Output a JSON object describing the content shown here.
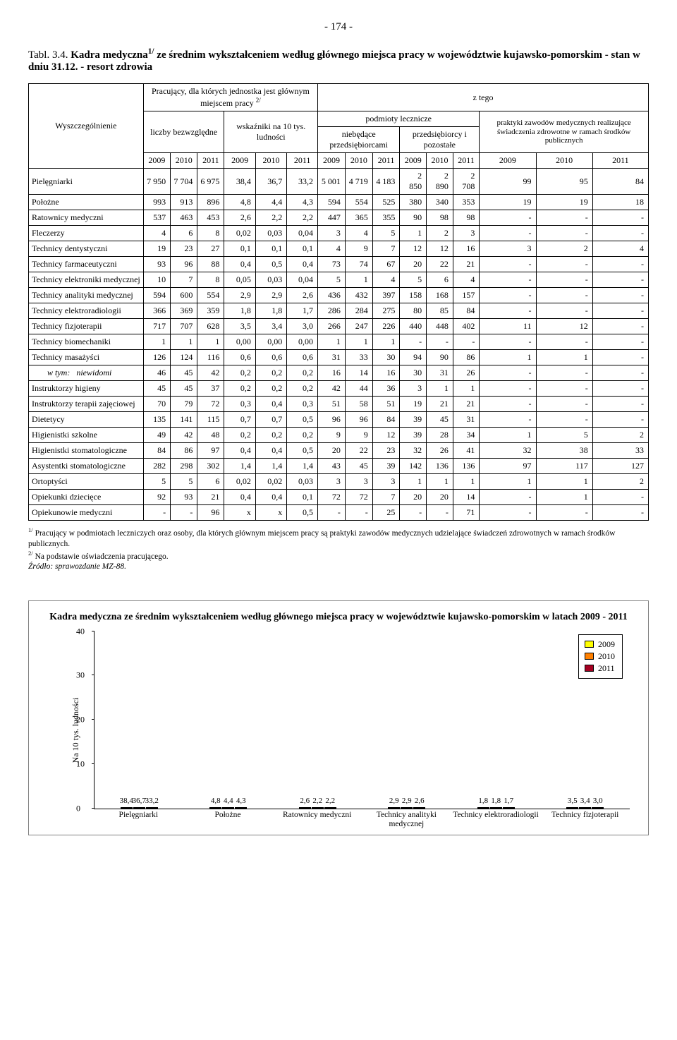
{
  "page_number": "- 174 -",
  "title_prefix": "Tabl. 3.4.",
  "title_main": "Kadra medyczna",
  "title_sup": "1/",
  "title_rest": " ze średnim wykształceniem według głównego miejsca pracy w województwie kujawsko-pomorskim - stan w dniu 31.12. - resort zdrowia",
  "header": {
    "col1": "Wyszczególnienie",
    "group_top": "Pracujący, dla których jednostka jest głównym miejscem pracy",
    "group_top_sup": "2/",
    "z_tego": "z tego",
    "liczby": "liczby bezwzględne",
    "wskazniki": "wskaźniki na 10 tys. ludności",
    "podmioty": "podmioty lecznicze",
    "praktyki": "praktyki zawodów medycznych realizujące świadczenia zdrowotne w ramach środków publicznych",
    "niebedace": "niebędące przedsiębiorcami",
    "przedsiebiorcy": "przedsiębiorcy i pozostałe",
    "years": [
      "2009",
      "2010",
      "2011",
      "2009",
      "2010",
      "2011",
      "2009",
      "2010",
      "2011",
      "2009",
      "2010",
      "2011",
      "2009",
      "2010",
      "2011"
    ]
  },
  "rows": [
    {
      "label": "Pielęgniarki",
      "cells": [
        "7 950",
        "7 704",
        "6 975",
        "38,4",
        "36,7",
        "33,2",
        "5 001",
        "4 719",
        "4 183",
        "2 850",
        "2 890",
        "2 708",
        "99",
        "95",
        "84"
      ]
    },
    {
      "label": "Położne",
      "cells": [
        "993",
        "913",
        "896",
        "4,8",
        "4,4",
        "4,3",
        "594",
        "554",
        "525",
        "380",
        "340",
        "353",
        "19",
        "19",
        "18"
      ]
    },
    {
      "label": "Ratownicy medyczni",
      "cells": [
        "537",
        "463",
        "453",
        "2,6",
        "2,2",
        "2,2",
        "447",
        "365",
        "355",
        "90",
        "98",
        "98",
        "-",
        "-",
        "-"
      ]
    },
    {
      "label": "Fleczerzy",
      "cells": [
        "4",
        "6",
        "8",
        "0,02",
        "0,03",
        "0,04",
        "3",
        "4",
        "5",
        "1",
        "2",
        "3",
        "-",
        "-",
        "-"
      ]
    },
    {
      "label": "Technicy dentystyczni",
      "cells": [
        "19",
        "23",
        "27",
        "0,1",
        "0,1",
        "0,1",
        "4",
        "9",
        "7",
        "12",
        "12",
        "16",
        "3",
        "2",
        "4"
      ]
    },
    {
      "label": "Technicy farmaceutyczni",
      "cells": [
        "93",
        "96",
        "88",
        "0,4",
        "0,5",
        "0,4",
        "73",
        "74",
        "67",
        "20",
        "22",
        "21",
        "-",
        "-",
        "-"
      ]
    },
    {
      "label": "Technicy elektroniki medycznej",
      "cells": [
        "10",
        "7",
        "8",
        "0,05",
        "0,03",
        "0,04",
        "5",
        "1",
        "4",
        "5",
        "6",
        "4",
        "-",
        "-",
        "-"
      ]
    },
    {
      "label": "Technicy analityki medycznej",
      "cells": [
        "594",
        "600",
        "554",
        "2,9",
        "2,9",
        "2,6",
        "436",
        "432",
        "397",
        "158",
        "168",
        "157",
        "-",
        "-",
        "-"
      ]
    },
    {
      "label": "Technicy elektroradiologii",
      "cells": [
        "366",
        "369",
        "359",
        "1,8",
        "1,8",
        "1,7",
        "286",
        "284",
        "275",
        "80",
        "85",
        "84",
        "-",
        "-",
        "-"
      ]
    },
    {
      "label": "Technicy fizjoterapii",
      "cells": [
        "717",
        "707",
        "628",
        "3,5",
        "3,4",
        "3,0",
        "266",
        "247",
        "226",
        "440",
        "448",
        "402",
        "11",
        "12",
        "-"
      ]
    },
    {
      "label": "Technicy biomechaniki",
      "cells": [
        "1",
        "1",
        "1",
        "0,00",
        "0,00",
        "0,00",
        "1",
        "1",
        "1",
        "-",
        "-",
        "-",
        "-",
        "-",
        "-"
      ]
    },
    {
      "label": "Technicy masażyści",
      "cells": [
        "126",
        "124",
        "116",
        "0,6",
        "0,6",
        "0,6",
        "31",
        "33",
        "30",
        "94",
        "90",
        "86",
        "1",
        "1",
        "-"
      ]
    },
    {
      "label": "w tym:   niewidomi",
      "italic": true,
      "indent": true,
      "cells": [
        "46",
        "45",
        "42",
        "0,2",
        "0,2",
        "0,2",
        "16",
        "14",
        "16",
        "30",
        "31",
        "26",
        "-",
        "-",
        "-"
      ]
    },
    {
      "label": "Instruktorzy higieny",
      "cells": [
        "45",
        "45",
        "37",
        "0,2",
        "0,2",
        "0,2",
        "42",
        "44",
        "36",
        "3",
        "1",
        "1",
        "-",
        "-",
        "-"
      ]
    },
    {
      "label": "Instruktorzy terapii zajęciowej",
      "cells": [
        "70",
        "79",
        "72",
        "0,3",
        "0,4",
        "0,3",
        "51",
        "58",
        "51",
        "19",
        "21",
        "21",
        "-",
        "-",
        "-"
      ]
    },
    {
      "label": "Dietetycy",
      "cells": [
        "135",
        "141",
        "115",
        "0,7",
        "0,7",
        "0,5",
        "96",
        "96",
        "84",
        "39",
        "45",
        "31",
        "-",
        "-",
        "-"
      ]
    },
    {
      "label": "Higienistki szkolne",
      "cells": [
        "49",
        "42",
        "48",
        "0,2",
        "0,2",
        "0,2",
        "9",
        "9",
        "12",
        "39",
        "28",
        "34",
        "1",
        "5",
        "2"
      ]
    },
    {
      "label": "Higienistki stomatologiczne",
      "cells": [
        "84",
        "86",
        "97",
        "0,4",
        "0,4",
        "0,5",
        "20",
        "22",
        "23",
        "32",
        "26",
        "41",
        "32",
        "38",
        "33"
      ]
    },
    {
      "label": "Asystentki stomatologiczne",
      "cells": [
        "282",
        "298",
        "302",
        "1,4",
        "1,4",
        "1,4",
        "43",
        "45",
        "39",
        "142",
        "136",
        "136",
        "97",
        "117",
        "127"
      ]
    },
    {
      "label": "Ortoptyści",
      "cells": [
        "5",
        "5",
        "6",
        "0,02",
        "0,02",
        "0,03",
        "3",
        "3",
        "3",
        "1",
        "1",
        "1",
        "1",
        "1",
        "2"
      ]
    },
    {
      "label": "Opiekunki dziecięce",
      "cells": [
        "92",
        "93",
        "21",
        "0,4",
        "0,4",
        "0,1",
        "72",
        "72",
        "7",
        "20",
        "20",
        "14",
        "-",
        "1",
        "-"
      ]
    },
    {
      "label": "Opiekunowie medyczni",
      "cells": [
        "-",
        "-",
        "96",
        "x",
        "x",
        "0,5",
        "-",
        "-",
        "25",
        "-",
        "-",
        "71",
        "-",
        "-",
        "-"
      ]
    }
  ],
  "footnotes": {
    "f1_sup": "1/",
    "f1": " Pracujący w podmiotach leczniczych oraz osoby, dla których głównym miejscem pracy są praktyki zawodów medycznych udzielające świadczeń zdrowotnych w ramach środków publicznych.",
    "f2_sup": "2/",
    "f2": " Na podstawie oświadczenia pracującego.",
    "source": "Źródło: sprawozdanie MZ-88."
  },
  "chart": {
    "type": "bar",
    "title": "Kadra medyczna ze średnim wykształceniem według głównego miejsca pracy w województwie kujawsko-pomorskim w latach 2009 - 2011",
    "y_axis_label": "Na 10 tys. ludności",
    "ylim": [
      0,
      40
    ],
    "ytick_step": 10,
    "yticks": [
      "0",
      "10",
      "20",
      "30",
      "40"
    ],
    "categories": [
      "Pielęgniarki",
      "Położne",
      "Ratownicy medyczni",
      "Technicy analityki medycznej",
      "Technicy elektroradiologii",
      "Technicy fizjoterapii"
    ],
    "series": [
      {
        "name": "2009",
        "color": "#ffff00",
        "values": [
          38.4,
          4.8,
          2.6,
          2.9,
          1.8,
          3.5
        ],
        "labels": [
          "38,4",
          "4,8",
          "2,6",
          "2,9",
          "1,8",
          "3,5"
        ]
      },
      {
        "name": "2010",
        "color": "#ff8000",
        "values": [
          36.7,
          4.4,
          2.2,
          2.9,
          1.8,
          3.4
        ],
        "labels": [
          "36,7",
          "4,4",
          "2,2",
          "2,9",
          "1,8",
          "3,4"
        ]
      },
      {
        "name": "2011",
        "color": "#a50021",
        "values": [
          33.2,
          4.3,
          2.2,
          2.6,
          1.7,
          3.0
        ],
        "labels": [
          "33,2",
          "4,3",
          "2,2",
          "2,6",
          "1,7",
          "3,0"
        ]
      }
    ],
    "legend_border": "#000000",
    "bar_border": "#000000",
    "background": "#ffffff"
  }
}
